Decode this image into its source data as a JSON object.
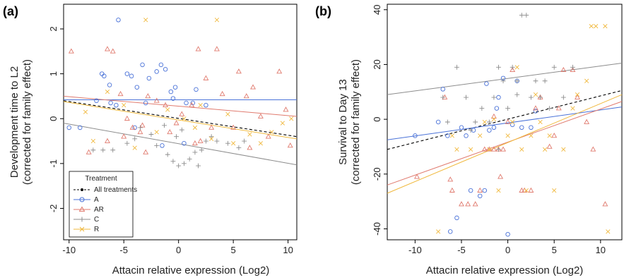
{
  "chart_data": [
    {
      "panel_label": "(a)",
      "type": "scatter",
      "xlabel": "Attacin relative expression (Log2)",
      "ylabel_line1": "Development time to L2",
      "ylabel_line2": "(corrected for family effect)",
      "xlim": [
        -10.5,
        10.8
      ],
      "ylim": [
        -2.7,
        2.55
      ],
      "xticks": [
        "-10",
        "-5",
        "0",
        "5",
        "10"
      ],
      "yticks": [
        "-2",
        "-1",
        "0",
        "1",
        "2"
      ],
      "grid": false,
      "legend_placement": "bottom-left",
      "legend": {
        "title": "Treatment",
        "entries": [
          {
            "key": "all",
            "label": "All treatments"
          },
          {
            "key": "A",
            "label": "A"
          },
          {
            "key": "AR",
            "label": "AR"
          },
          {
            "key": "C",
            "label": "C"
          },
          {
            "key": "R",
            "label": "R"
          }
        ]
      },
      "series": [
        {
          "key": "A",
          "color": "#4a72d8",
          "marker": "circle",
          "points": [
            [
              -7,
              1.0
            ],
            [
              -6.8,
              0.95
            ],
            [
              -6.3,
              0.75
            ],
            [
              -6.2,
              0.35
            ],
            [
              -5.7,
              0.3
            ],
            [
              -4.7,
              1.0
            ],
            [
              -4.3,
              0.95
            ],
            [
              -3.8,
              0.7
            ],
            [
              -3.3,
              1.2
            ],
            [
              -2.7,
              0.9
            ],
            [
              -2,
              1.05
            ],
            [
              -1.6,
              1.2
            ],
            [
              -1.2,
              1.1
            ],
            [
              -0.7,
              0.6
            ],
            [
              -0.3,
              0.7
            ],
            [
              0.7,
              0.35
            ],
            [
              1.3,
              0.35
            ],
            [
              1.6,
              0.65
            ],
            [
              -7.5,
              0.4
            ],
            [
              -10,
              -0.2
            ],
            [
              -9,
              -0.2
            ],
            [
              -5.5,
              2.2
            ],
            [
              -1.5,
              -0.6
            ],
            [
              -0.5,
              0.45
            ],
            [
              2.5,
              0.3
            ],
            [
              -4,
              -0.2
            ],
            [
              -3,
              0.35
            ],
            [
              0.5,
              -0.55
            ]
          ]
        },
        {
          "key": "AR",
          "color": "#e07a6e",
          "marker": "triangle",
          "points": [
            [
              -9.8,
              1.5
            ],
            [
              -6.5,
              1.55
            ],
            [
              -6,
              1.5
            ],
            [
              -5.3,
              0.55
            ],
            [
              -4.7,
              0
            ],
            [
              -3.3,
              -0.15
            ],
            [
              -2.8,
              0.5
            ],
            [
              -2,
              0.4
            ],
            [
              -1.2,
              0.3
            ],
            [
              -0.8,
              -0.3
            ],
            [
              0.3,
              0.1
            ],
            [
              1.2,
              0.3
            ],
            [
              1.8,
              1.55
            ],
            [
              2.5,
              0.9
            ],
            [
              3.5,
              1.55
            ],
            [
              4,
              0.55
            ],
            [
              5.5,
              1.05
            ],
            [
              6.2,
              0.5
            ],
            [
              6.8,
              0.7
            ],
            [
              7.5,
              0.05
            ],
            [
              8.2,
              -0.4
            ],
            [
              9.2,
              1.05
            ],
            [
              9.8,
              0.2
            ],
            [
              10.2,
              -0.6
            ],
            [
              -8.2,
              -0.75
            ],
            [
              -6.5,
              -0.5
            ],
            [
              -5,
              -0.4
            ],
            [
              -3.5,
              -0.3
            ],
            [
              3,
              -0.2
            ],
            [
              5,
              -0.2
            ],
            [
              2,
              -0.5
            ],
            [
              -3,
              -0.75
            ],
            [
              -0.2,
              -0.1
            ],
            [
              1.5,
              -0.55
            ],
            [
              -4.2,
              -0.2
            ],
            [
              6.5,
              -0.65
            ]
          ]
        },
        {
          "key": "C",
          "color": "#8c8c8c",
          "marker": "plus",
          "points": [
            [
              -7.8,
              -0.7
            ],
            [
              -6.9,
              -0.7
            ],
            [
              -6,
              -0.7
            ],
            [
              -4.7,
              -0.55
            ],
            [
              -4,
              -0.45
            ],
            [
              -3.5,
              -0.2
            ],
            [
              -2.5,
              -0.35
            ],
            [
              -2,
              -0.6
            ],
            [
              -1.3,
              -0.15
            ],
            [
              -1,
              -0.8
            ],
            [
              -0.5,
              -0.95
            ],
            [
              0,
              -1.05
            ],
            [
              0.5,
              -1
            ],
            [
              1,
              -0.9
            ],
            [
              1.5,
              -0.75
            ],
            [
              2.1,
              -0.7
            ],
            [
              2.5,
              -0.5
            ],
            [
              3,
              -0.4
            ],
            [
              3.5,
              -0.5
            ],
            [
              4.5,
              -0.55
            ],
            [
              5.5,
              -0.65
            ],
            [
              6,
              -0.5
            ],
            [
              0.3,
              -0.25
            ],
            [
              -0.2,
              -0.4
            ],
            [
              1.8,
              -1.05
            ]
          ]
        },
        {
          "key": "R",
          "color": "#f0b83c",
          "marker": "x",
          "points": [
            [
              -3,
              2.2
            ],
            [
              3.5,
              2.2
            ],
            [
              -7.8,
              -0.5
            ],
            [
              -6.5,
              0.6
            ],
            [
              -4,
              -0.65
            ],
            [
              -2,
              -0.3
            ],
            [
              -1,
              0.2
            ],
            [
              0.5,
              0
            ],
            [
              2,
              0.3
            ],
            [
              3,
              -0.45
            ],
            [
              4.5,
              0.1
            ],
            [
              5,
              -0.55
            ],
            [
              6.5,
              -0.35
            ],
            [
              7.5,
              -0.55
            ],
            [
              8.5,
              -0.3
            ],
            [
              9.5,
              -0.1
            ],
            [
              10.3,
              0
            ],
            [
              -5,
              0.3
            ],
            [
              1.5,
              -0.2
            ],
            [
              -8.5,
              0.15
            ]
          ]
        }
      ],
      "fit_lines": [
        {
          "key": "all",
          "color": "#000000",
          "dashed": true,
          "x": [
            -10.5,
            10.8
          ],
          "y": [
            0.4,
            -0.4
          ]
        },
        {
          "key": "R",
          "color": "#f0b83c",
          "dashed": false,
          "x": [
            -10.5,
            10.8
          ],
          "y": [
            0.38,
            -0.45
          ]
        },
        {
          "key": "A",
          "color": "#4a72d8",
          "dashed": false,
          "x": [
            -10.5,
            10.8
          ],
          "y": [
            0.42,
            0.42
          ]
        },
        {
          "key": "AR",
          "color": "#e07a6e",
          "dashed": false,
          "x": [
            -10.5,
            10.8
          ],
          "y": [
            0.5,
            0.05
          ]
        },
        {
          "key": "C",
          "color": "#8c8c8c",
          "dashed": false,
          "x": [
            -10.5,
            10.8
          ],
          "y": [
            -0.1,
            -1.03
          ]
        }
      ]
    },
    {
      "panel_label": "(b)",
      "type": "scatter",
      "xlabel": "Attacin relative expression (Log2)",
      "ylabel_line1": "Survival to Day 13",
      "ylabel_line2": "(corrected for family effect)",
      "xlim": [
        -13,
        12.3
      ],
      "ylim": [
        -44,
        42
      ],
      "xticks": [
        "-10",
        "-5",
        "0",
        "5",
        "10"
      ],
      "yticks": [
        "-40",
        "-20",
        "0",
        "20",
        "40"
      ],
      "grid": false,
      "series": [
        {
          "key": "A",
          "color": "#4a72d8",
          "marker": "circle",
          "points": [
            [
              -10,
              -6
            ],
            [
              -7.5,
              -1
            ],
            [
              -7,
              11
            ],
            [
              -6.5,
              -6
            ],
            [
              -6.2,
              -41
            ],
            [
              -5.5,
              -36
            ],
            [
              -5,
              -3
            ],
            [
              -4,
              -26
            ],
            [
              -3.7,
              -4
            ],
            [
              -3,
              -28
            ],
            [
              -2.5,
              -26
            ],
            [
              -2,
              -4
            ],
            [
              -1.5,
              -3
            ],
            [
              -1,
              8
            ],
            [
              -0.5,
              15
            ],
            [
              0,
              -42
            ],
            [
              0.5,
              -2
            ],
            [
              1.5,
              -3
            ],
            [
              2.5,
              -3
            ],
            [
              3,
              3
            ],
            [
              -4.5,
              -6
            ],
            [
              -2.3,
              13
            ],
            [
              1,
              14
            ],
            [
              -1.2,
              4
            ]
          ]
        },
        {
          "key": "AR",
          "color": "#e07a6e",
          "marker": "triangle",
          "points": [
            [
              -9.8,
              -21
            ],
            [
              -6.8,
              8
            ],
            [
              -6,
              -26
            ],
            [
              -5,
              -31
            ],
            [
              -4.3,
              -31
            ],
            [
              -3.5,
              -31
            ],
            [
              -3,
              -26
            ],
            [
              -2.5,
              -11
            ],
            [
              -2,
              -11
            ],
            [
              -1.5,
              -11
            ],
            [
              -1,
              -11
            ],
            [
              -0.5,
              -11
            ],
            [
              0,
              -1
            ],
            [
              0.5,
              18
            ],
            [
              1.5,
              -26
            ],
            [
              2.5,
              -26
            ],
            [
              3,
              4
            ],
            [
              3.5,
              8
            ],
            [
              4.5,
              -10
            ],
            [
              5,
              -6
            ],
            [
              6,
              18
            ],
            [
              7,
              18
            ],
            [
              7.5,
              8
            ],
            [
              8.5,
              -1
            ],
            [
              9.2,
              -11
            ],
            [
              10.5,
              -31
            ],
            [
              -6.2,
              -22
            ],
            [
              -0.8,
              -21
            ],
            [
              1.8,
              -26
            ],
            [
              -1.5,
              1
            ],
            [
              5.5,
              4
            ]
          ]
        },
        {
          "key": "C",
          "color": "#8c8c8c",
          "marker": "plus",
          "points": [
            [
              -7,
              8
            ],
            [
              -6.5,
              -1
            ],
            [
              -5.5,
              19
            ],
            [
              -4.5,
              8
            ],
            [
              -3.5,
              -1
            ],
            [
              -2.8,
              4
            ],
            [
              -2,
              -1
            ],
            [
              -1.5,
              8
            ],
            [
              -1,
              19
            ],
            [
              -0.5,
              14
            ],
            [
              0,
              4
            ],
            [
              0.5,
              19
            ],
            [
              1,
              14
            ],
            [
              1.5,
              38
            ],
            [
              2,
              38
            ],
            [
              2.5,
              8
            ],
            [
              3,
              14
            ],
            [
              3.5,
              8
            ],
            [
              4,
              14
            ],
            [
              4.5,
              4
            ],
            [
              5,
              19
            ],
            [
              6,
              8
            ],
            [
              7,
              19
            ],
            [
              -1,
              -11
            ],
            [
              1,
              9
            ],
            [
              -4,
              -4
            ]
          ]
        },
        {
          "key": "R",
          "color": "#f0b83c",
          "marker": "x",
          "points": [
            [
              -7.5,
              -41
            ],
            [
              -6,
              -6
            ],
            [
              -4,
              -11
            ],
            [
              -3,
              -6
            ],
            [
              -2.5,
              -1
            ],
            [
              -2,
              -11
            ],
            [
              -1,
              -26
            ],
            [
              0,
              -6
            ],
            [
              0.5,
              -1
            ],
            [
              1,
              19
            ],
            [
              1.5,
              -11
            ],
            [
              2,
              -26
            ],
            [
              2.5,
              -6
            ],
            [
              3,
              9
            ],
            [
              3.5,
              -1
            ],
            [
              4.5,
              -6
            ],
            [
              5,
              -26
            ],
            [
              6,
              -11
            ],
            [
              7,
              4
            ],
            [
              7.5,
              9
            ],
            [
              8.5,
              14
            ],
            [
              9,
              34
            ],
            [
              9.5,
              34
            ],
            [
              10.5,
              34
            ],
            [
              -5.5,
              -11
            ],
            [
              -1.5,
              0
            ],
            [
              4,
              -11
            ],
            [
              10.8,
              -41
            ]
          ]
        }
      ],
      "fit_lines": [
        {
          "key": "all",
          "color": "#000000",
          "dashed": true,
          "x": [
            -13,
            12.3
          ],
          "y": [
            -11,
            10.5
          ]
        },
        {
          "key": "C",
          "color": "#8c8c8c",
          "dashed": false,
          "x": [
            -13,
            12.3
          ],
          "y": [
            9,
            20.5
          ]
        },
        {
          "key": "A",
          "color": "#4a72d8",
          "dashed": false,
          "x": [
            -13,
            12.3
          ],
          "y": [
            -7.5,
            4.5
          ]
        },
        {
          "key": "AR",
          "color": "#e07a6e",
          "dashed": false,
          "x": [
            -13,
            12.3
          ],
          "y": [
            -24,
            6.5
          ]
        },
        {
          "key": "R",
          "color": "#f0b83c",
          "dashed": false,
          "x": [
            -13,
            12.3
          ],
          "y": [
            -27,
            9
          ]
        }
      ]
    }
  ]
}
